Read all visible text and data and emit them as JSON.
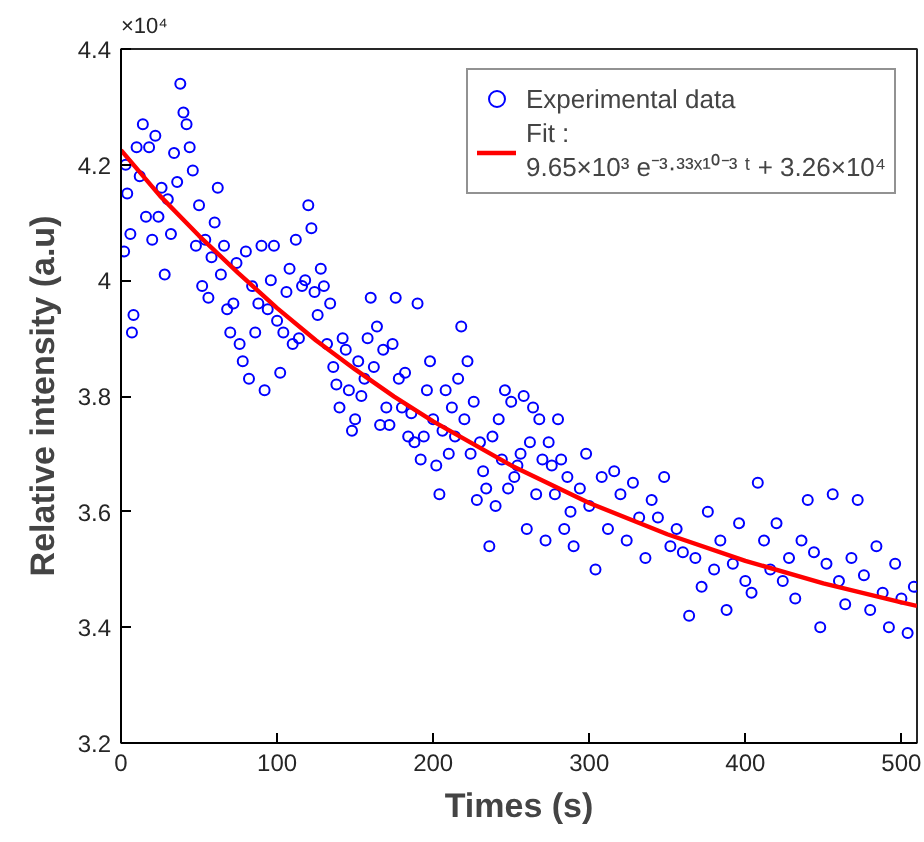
{
  "chart_data": {
    "type": "scatter",
    "xlabel": "Times (s)",
    "ylabel": "Relative intensity (a.u)",
    "annotations": [
      "×10⁴"
    ],
    "xlim": [
      0,
      510
    ],
    "xticks": [
      0,
      100,
      200,
      300,
      400,
      500
    ],
    "ylim": [
      3.2,
      4.4
    ],
    "yticks": [
      3.2,
      3.4,
      3.6,
      3.8,
      4,
      4.2,
      4.4
    ],
    "grid": false,
    "legend": "top right",
    "series": [
      {
        "name": "Experimental data",
        "color": "#0000ff",
        "marker": "circle",
        "x": [
          2,
          3,
          4,
          6,
          7,
          8,
          10,
          12,
          14,
          16,
          18,
          20,
          22,
          24,
          26,
          28,
          30,
          32,
          34,
          36,
          38,
          40,
          42,
          44,
          46,
          48,
          50,
          52,
          54,
          56,
          58,
          60,
          62,
          64,
          66,
          68,
          70,
          72,
          74,
          76,
          78,
          80,
          82,
          84,
          86,
          88,
          90,
          92,
          94,
          96,
          98,
          100,
          102,
          104,
          106,
          108,
          110,
          112,
          114,
          116,
          118,
          120,
          122,
          124,
          126,
          128,
          130,
          132,
          134,
          136,
          138,
          140,
          142,
          144,
          146,
          148,
          150,
          152,
          154,
          156,
          158,
          160,
          162,
          164,
          166,
          168,
          170,
          172,
          174,
          176,
          178,
          180,
          182,
          184,
          186,
          188,
          190,
          192,
          194,
          196,
          198,
          200,
          202,
          204,
          206,
          208,
          210,
          212,
          214,
          216,
          218,
          220,
          222,
          224,
          226,
          228,
          230,
          232,
          234,
          236,
          238,
          240,
          242,
          244,
          246,
          248,
          250,
          252,
          254,
          256,
          258,
          260,
          262,
          264,
          266,
          268,
          270,
          272,
          274,
          276,
          278,
          280,
          282,
          284,
          286,
          288,
          290,
          294,
          298,
          300,
          304,
          308,
          312,
          316,
          320,
          324,
          328,
          332,
          336,
          340,
          344,
          348,
          352,
          356,
          360,
          364,
          368,
          372,
          376,
          380,
          384,
          388,
          392,
          396,
          400,
          404,
          408,
          412,
          416,
          420,
          424,
          428,
          432,
          436,
          440,
          444,
          448,
          452,
          456,
          460,
          464,
          468,
          472,
          476,
          480,
          484,
          488,
          492,
          496,
          500,
          504,
          508
        ],
        "values": [
          4.05,
          4.2,
          4.15,
          4.08,
          3.91,
          3.94,
          4.23,
          4.18,
          4.27,
          4.11,
          4.23,
          4.07,
          4.25,
          4.11,
          4.16,
          4.01,
          4.14,
          4.08,
          4.22,
          4.17,
          4.34,
          4.29,
          4.27,
          4.23,
          4.19,
          4.06,
          4.13,
          3.99,
          4.07,
          3.97,
          4.04,
          4.1,
          4.16,
          4.01,
          4.06,
          3.95,
          3.91,
          3.96,
          4.03,
          3.89,
          3.86,
          4.05,
          3.83,
          3.99,
          3.91,
          3.96,
          4.06,
          3.81,
          3.95,
          4,
          4.06,
          3.93,
          3.84,
          3.91,
          3.98,
          4.02,
          3.89,
          4.07,
          3.9,
          3.99,
          4,
          4.13,
          4.09,
          3.98,
          3.94,
          4.02,
          3.99,
          3.89,
          3.96,
          3.85,
          3.82,
          3.78,
          3.9,
          3.88,
          3.81,
          3.74,
          3.76,
          3.86,
          3.8,
          3.83,
          3.9,
          3.97,
          3.85,
          3.92,
          3.75,
          3.88,
          3.78,
          3.75,
          3.89,
          3.97,
          3.83,
          3.78,
          3.84,
          3.73,
          3.77,
          3.72,
          3.96,
          3.69,
          3.73,
          3.81,
          3.86,
          3.76,
          3.68,
          3.63,
          3.74,
          3.81,
          3.7,
          3.78,
          3.73,
          3.83,
          3.92,
          3.76,
          3.86,
          3.7,
          3.79,
          3.62,
          3.72,
          3.67,
          3.64,
          3.54,
          3.73,
          3.61,
          3.76,
          3.69,
          3.81,
          3.64,
          3.79,
          3.66,
          3.68,
          3.7,
          3.8,
          3.57,
          3.72,
          3.78,
          3.63,
          3.76,
          3.69,
          3.55,
          3.72,
          3.68,
          3.63,
          3.76,
          3.69,
          3.57,
          3.66,
          3.6,
          3.54,
          3.64,
          3.7,
          3.61,
          3.5,
          3.66,
          3.57,
          3.67,
          3.63,
          3.55,
          3.65,
          3.59,
          3.52,
          3.62,
          3.59,
          3.66,
          3.54,
          3.57,
          3.53,
          3.42,
          3.52,
          3.47,
          3.6,
          3.5,
          3.55,
          3.43,
          3.51,
          3.58,
          3.48,
          3.46,
          3.65,
          3.55,
          3.5,
          3.58,
          3.48,
          3.52,
          3.45,
          3.55,
          3.62,
          3.53,
          3.4,
          3.51,
          3.63,
          3.48,
          3.44,
          3.52,
          3.62,
          3.49,
          3.43,
          3.54,
          3.46,
          3.4,
          3.51,
          3.45,
          3.39,
          3.47
        ]
      },
      {
        "name": "Fit :\n9.65×10³ e⁻³·³³ˣ¹⁰⁻³ ᵗ + 3.26×10⁴",
        "type": "line",
        "color": "#ff0000",
        "line_style": "solid",
        "marker": "none",
        "x": [
          0,
          25,
          50,
          75,
          100,
          125,
          150,
          175,
          200,
          250,
          300,
          350,
          400,
          450,
          500,
          510
        ],
        "values": [
          4.225,
          4.146,
          4.077,
          4.013,
          3.952,
          3.896,
          3.846,
          3.799,
          3.756,
          3.68,
          3.615,
          3.561,
          3.515,
          3.476,
          3.443,
          3.437
        ]
      }
    ]
  }
}
